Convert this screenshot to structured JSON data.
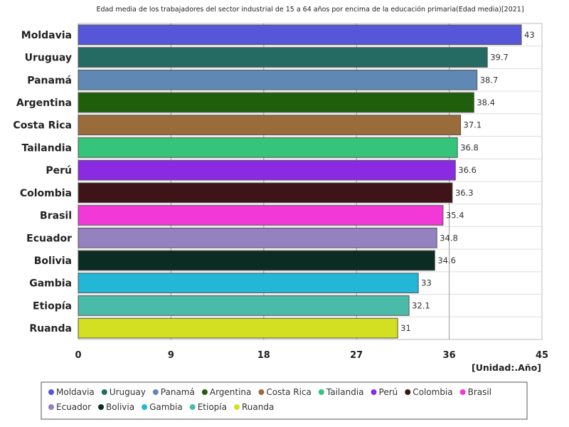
{
  "chart_data": {
    "type": "bar",
    "orientation": "horizontal",
    "title": "Edad media de los trabajadores del sector industrial de 15 a 64 años por encima de la educación primaria(Edad media)[2021]",
    "unit_label": "[Unidad:.Año]",
    "categories": [
      "Moldavia",
      "Uruguay",
      "Panamá",
      "Argentina",
      "Costa Rica",
      "Tailandia",
      "Perú",
      "Colombia",
      "Brasil",
      "Ecuador",
      "Bolivia",
      "Gambia",
      "Etiopía",
      "Ruanda"
    ],
    "values": [
      43,
      39.7,
      38.7,
      38.4,
      37.1,
      36.8,
      36.6,
      36.3,
      35.4,
      34.8,
      34.6,
      33,
      32.1,
      31
    ],
    "value_labels": [
      "43",
      "39.7",
      "38.7",
      "38.4",
      "37.1",
      "36.8",
      "36.6",
      "36.3",
      "35.4",
      "34.8",
      "34.6",
      "33",
      "32.1",
      "31"
    ],
    "colors": [
      "#5656d8",
      "#256b63",
      "#5f89b4",
      "#1f5f0b",
      "#9a6b3b",
      "#36c47a",
      "#8a2be2",
      "#3e1418",
      "#f238d6",
      "#9481bf",
      "#0b2c22",
      "#23b6d6",
      "#4bbba9",
      "#d3e021"
    ],
    "xlim": [
      0,
      45
    ],
    "xticks": [
      0,
      9,
      18,
      27,
      36,
      45
    ],
    "xtick_labels": [
      "0",
      "9",
      "18",
      "27",
      "36",
      "45"
    ],
    "grid": true,
    "legend_placement": "bottom"
  }
}
